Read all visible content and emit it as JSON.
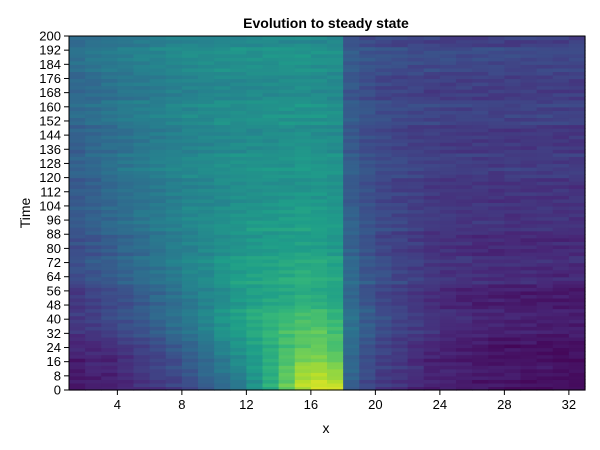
{
  "chart_data": {
    "type": "heatmap",
    "title": "Evolution to steady state",
    "xlabel": "x",
    "ylabel": "Time",
    "xlim": [
      1,
      33
    ],
    "ylim": [
      0,
      200
    ],
    "xticks": [
      4,
      8,
      12,
      16,
      20,
      24,
      28,
      32
    ],
    "yticks": [
      0,
      8,
      16,
      24,
      32,
      40,
      48,
      56,
      64,
      72,
      80,
      88,
      96,
      104,
      112,
      120,
      128,
      136,
      144,
      152,
      160,
      168,
      176,
      184,
      192,
      200
    ],
    "colormap": "viridis",
    "grid": false,
    "legend": "none",
    "colors": {
      "viridis": [
        "#440154",
        "#482878",
        "#3e4a89",
        "#31688e",
        "#26828e",
        "#1f9e89",
        "#35b779",
        "#6ece58",
        "#b5de2b",
        "#fde725"
      ]
    },
    "time_samples": [
      0,
      8,
      16,
      24,
      32,
      40,
      48,
      56,
      64,
      72,
      80,
      88,
      96,
      104,
      112,
      120,
      128,
      136,
      144,
      152,
      160,
      168,
      176,
      184,
      192,
      200
    ],
    "x_samples": [
      1,
      4,
      8,
      12,
      16,
      17.5,
      18,
      20,
      24,
      28,
      32,
      33
    ],
    "intensity_rows": [
      [
        0.05,
        0.07,
        0.18,
        0.4,
        0.95,
        0.92,
        0.3,
        0.15,
        0.07,
        0.04,
        0.02,
        0.02
      ],
      [
        0.06,
        0.09,
        0.22,
        0.45,
        0.9,
        0.85,
        0.35,
        0.18,
        0.08,
        0.05,
        0.03,
        0.03
      ],
      [
        0.08,
        0.12,
        0.26,
        0.5,
        0.85,
        0.78,
        0.38,
        0.2,
        0.09,
        0.06,
        0.04,
        0.04
      ],
      [
        0.1,
        0.15,
        0.3,
        0.55,
        0.8,
        0.72,
        0.4,
        0.22,
        0.1,
        0.06,
        0.05,
        0.05
      ],
      [
        0.12,
        0.18,
        0.34,
        0.57,
        0.75,
        0.68,
        0.4,
        0.23,
        0.11,
        0.07,
        0.06,
        0.06
      ],
      [
        0.14,
        0.21,
        0.37,
        0.58,
        0.71,
        0.65,
        0.4,
        0.24,
        0.12,
        0.08,
        0.07,
        0.07
      ],
      [
        0.16,
        0.24,
        0.39,
        0.58,
        0.67,
        0.62,
        0.39,
        0.24,
        0.13,
        0.09,
        0.08,
        0.08
      ],
      [
        0.18,
        0.26,
        0.41,
        0.57,
        0.64,
        0.6,
        0.38,
        0.24,
        0.13,
        0.1,
        0.09,
        0.09
      ],
      [
        0.2,
        0.28,
        0.42,
        0.56,
        0.62,
        0.58,
        0.37,
        0.24,
        0.14,
        0.11,
        0.1,
        0.1
      ],
      [
        0.22,
        0.3,
        0.43,
        0.55,
        0.6,
        0.56,
        0.36,
        0.23,
        0.14,
        0.12,
        0.11,
        0.11
      ],
      [
        0.23,
        0.31,
        0.44,
        0.54,
        0.58,
        0.55,
        0.35,
        0.23,
        0.15,
        0.12,
        0.12,
        0.12
      ],
      [
        0.25,
        0.33,
        0.44,
        0.53,
        0.57,
        0.54,
        0.34,
        0.23,
        0.15,
        0.13,
        0.13,
        0.13
      ],
      [
        0.26,
        0.34,
        0.45,
        0.52,
        0.56,
        0.53,
        0.34,
        0.23,
        0.16,
        0.14,
        0.14,
        0.14
      ],
      [
        0.27,
        0.35,
        0.45,
        0.51,
        0.55,
        0.52,
        0.33,
        0.23,
        0.16,
        0.15,
        0.15,
        0.15
      ],
      [
        0.28,
        0.36,
        0.45,
        0.51,
        0.54,
        0.52,
        0.33,
        0.23,
        0.17,
        0.16,
        0.16,
        0.16
      ],
      [
        0.29,
        0.37,
        0.46,
        0.51,
        0.53,
        0.51,
        0.32,
        0.23,
        0.18,
        0.17,
        0.17,
        0.17
      ],
      [
        0.3,
        0.37,
        0.46,
        0.5,
        0.53,
        0.51,
        0.32,
        0.23,
        0.18,
        0.17,
        0.17,
        0.17
      ],
      [
        0.31,
        0.38,
        0.46,
        0.5,
        0.52,
        0.5,
        0.31,
        0.23,
        0.19,
        0.18,
        0.18,
        0.18
      ],
      [
        0.32,
        0.38,
        0.46,
        0.5,
        0.52,
        0.5,
        0.31,
        0.23,
        0.19,
        0.18,
        0.18,
        0.18
      ],
      [
        0.32,
        0.39,
        0.46,
        0.5,
        0.51,
        0.49,
        0.3,
        0.23,
        0.19,
        0.19,
        0.19,
        0.19
      ],
      [
        0.33,
        0.39,
        0.46,
        0.49,
        0.51,
        0.49,
        0.3,
        0.23,
        0.2,
        0.19,
        0.19,
        0.19
      ],
      [
        0.33,
        0.4,
        0.46,
        0.49,
        0.51,
        0.49,
        0.3,
        0.23,
        0.2,
        0.2,
        0.2,
        0.2
      ],
      [
        0.34,
        0.4,
        0.46,
        0.49,
        0.5,
        0.48,
        0.3,
        0.23,
        0.2,
        0.2,
        0.2,
        0.2
      ],
      [
        0.34,
        0.4,
        0.46,
        0.49,
        0.5,
        0.48,
        0.29,
        0.23,
        0.21,
        0.2,
        0.2,
        0.2
      ],
      [
        0.35,
        0.41,
        0.46,
        0.49,
        0.5,
        0.48,
        0.29,
        0.23,
        0.21,
        0.21,
        0.21,
        0.21
      ],
      [
        0.35,
        0.41,
        0.46,
        0.49,
        0.5,
        0.48,
        0.29,
        0.23,
        0.21,
        0.21,
        0.21,
        0.21
      ]
    ]
  }
}
